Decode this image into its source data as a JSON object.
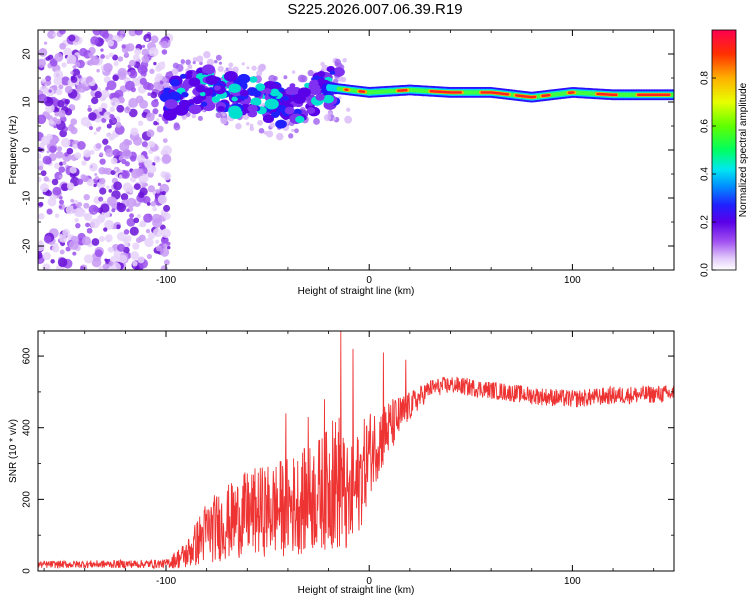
{
  "title": "S225.2026.007.06.39.R19",
  "chart_data": [
    {
      "type": "heatmap",
      "xlabel": "Height of straight line (km)",
      "ylabel": "Frequency (Hz)",
      "xlim": [
        -163,
        150
      ],
      "ylim": [
        -25,
        25
      ],
      "xticks": [
        -100,
        0,
        100
      ],
      "yticks": [
        -20,
        -10,
        0,
        10,
        20
      ],
      "colorbar": {
        "label": "Normalized spectral amplitude",
        "range": [
          0,
          1
        ],
        "ticks": [
          0.0,
          0.2,
          0.4,
          0.6,
          0.8
        ],
        "colormap": [
          "#ffffff",
          "#d8b8f8",
          "#a050f0",
          "#7000e0",
          "#3000ff",
          "#0040ff",
          "#00a0ff",
          "#00ffd0",
          "#00ff40",
          "#80ff00",
          "#ffff00",
          "#ffa000",
          "#ff4000",
          "#ff0040"
        ]
      },
      "ridge": {
        "description_points_x": [
          -100,
          -80,
          -60,
          -40,
          -20,
          0,
          20,
          40,
          60,
          80,
          100,
          120,
          140,
          150
        ],
        "description_points_y": [
          11,
          13,
          11,
          9,
          13,
          12,
          12.5,
          12,
          12,
          11,
          12,
          11.5,
          11.5,
          11.5
        ]
      },
      "grid": false
    },
    {
      "type": "line",
      "xlabel": "Height of straight line (km)",
      "ylabel": "SNR (10 * v/v)",
      "xlim": [
        -163,
        150
      ],
      "ylim": [
        0,
        670
      ],
      "xticks": [
        -100,
        0,
        100
      ],
      "yticks": [
        0,
        200,
        400,
        600
      ],
      "color": "#ee3333",
      "envelope": {
        "x": [
          -163,
          -100,
          -90,
          -80,
          -60,
          -40,
          -30,
          -20,
          -15,
          -10,
          -5,
          0,
          10,
          20,
          30,
          40,
          60,
          80,
          100,
          120,
          150
        ],
        "mean": [
          18,
          20,
          45,
          110,
          160,
          180,
          200,
          230,
          250,
          180,
          250,
          330,
          400,
          460,
          510,
          520,
          505,
          490,
          480,
          490,
          495
        ],
        "spread": [
          10,
          12,
          40,
          90,
          120,
          140,
          150,
          170,
          200,
          150,
          150,
          120,
          80,
          40,
          25,
          25,
          25,
          25,
          25,
          25,
          25
        ]
      },
      "spikes": [
        {
          "x": -14,
          "y": 670
        },
        {
          "x": -8,
          "y": 620
        },
        {
          "x": 7,
          "y": 610
        },
        {
          "x": 18,
          "y": 590
        },
        {
          "x": -41,
          "y": 440
        },
        {
          "x": -30,
          "y": 430
        },
        {
          "x": -22,
          "y": 480
        },
        {
          "x": -18,
          "y": 420
        }
      ],
      "grid": false
    }
  ]
}
